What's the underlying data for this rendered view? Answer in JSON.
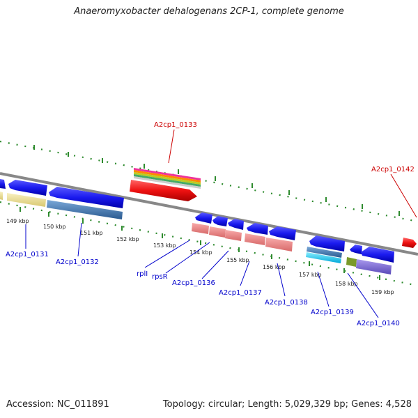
{
  "title": "Anaeromyxobacter dehalogenans 2CP-1, complete genome",
  "footer": {
    "accession": "Accession: NC_011891",
    "stats": "Topology: circular; Length: 5,029,329 bp; Genes: 4,528"
  },
  "ruler_ticks": [
    "149 kbp",
    "150 kbp",
    "151 kbp",
    "152 kbp",
    "153 kbp",
    "154 kbp",
    "155 kbp",
    "156 kbp",
    "157 kbp",
    "158 kbp",
    "159 kbp"
  ],
  "gene_labels_forward": [
    "A2cp1_0133",
    "A2cp1_0142"
  ],
  "gene_labels_reverse": [
    "A2cp1_0131",
    "A2cp1_0132",
    "rplI",
    "rpsR",
    "A2cp1_0136",
    "A2cp1_0137",
    "A2cp1_0138",
    "A2cp1_0139",
    "A2cp1_0140"
  ],
  "colors": {
    "forward_label": "#cc0000",
    "reverse_label": "#0000cc",
    "backbone": "#888888",
    "tick_green": "#2e8b2e",
    "gene_blue": "#1a1aee",
    "gene_red": "#ee1111",
    "band_yellow": "#efe39a",
    "band_steelblue": "#4a7fb5",
    "band_salmon": "#ee8888",
    "band_cyan": "#22ccee",
    "band_olive": "#7a9a2a",
    "band_purple": "#7a6ad0"
  }
}
